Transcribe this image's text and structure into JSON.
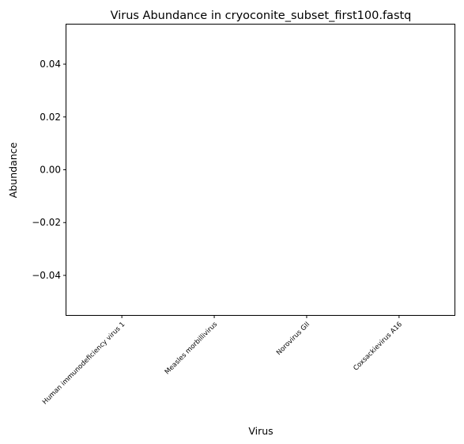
{
  "chart_data": {
    "type": "bar",
    "title": "Virus Abundance in cryoconite_subset_first100.fastq",
    "xlabel": "Virus",
    "ylabel": "Abundance",
    "categories": [
      "Human immunodeficiency virus 1",
      "Measles morbillivirus",
      "Norovirus GII",
      "Coxsackievirus A16"
    ],
    "values": [
      0,
      0,
      0,
      0
    ],
    "ylim": [
      -0.055,
      0.055
    ],
    "yticks": [
      0.04,
      0.02,
      0.0,
      -0.02,
      -0.04
    ],
    "ytick_labels": [
      "0.04",
      "0.02",
      "0.00",
      "−0.02",
      "−0.04"
    ],
    "grid": false,
    "legend": "none"
  }
}
